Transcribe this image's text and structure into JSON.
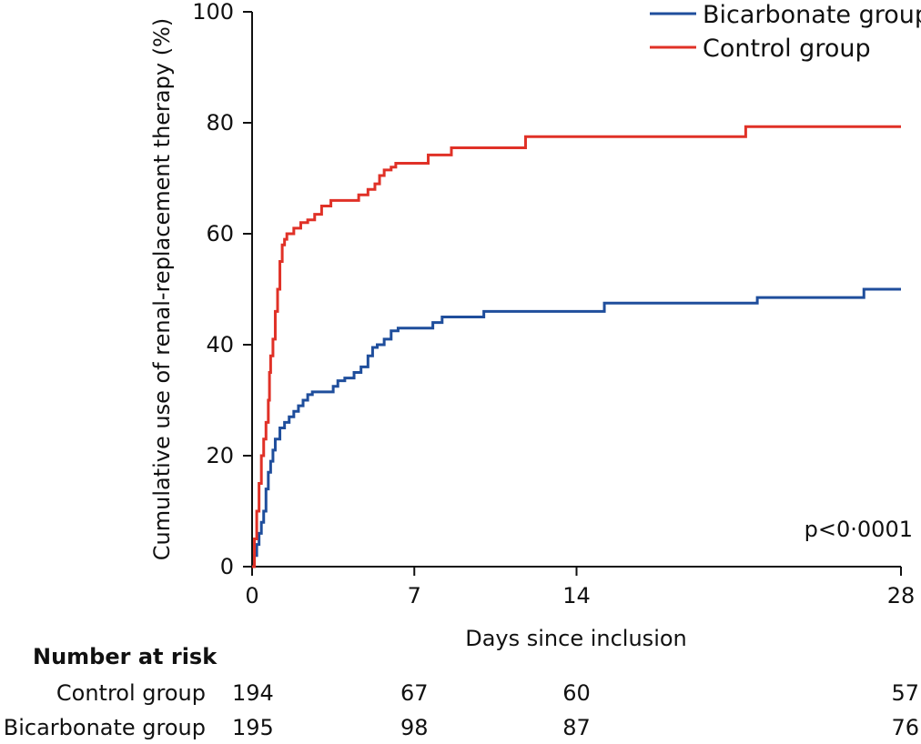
{
  "chart_data": {
    "type": "line",
    "step": true,
    "xlabel": "Days since inclusion",
    "ylabel": "Cumulative use of renal-replacement therapy (%)",
    "xlim": [
      0,
      28
    ],
    "ylim": [
      0,
      100
    ],
    "xticks": [
      0,
      7,
      14,
      28
    ],
    "yticks": [
      0,
      20,
      40,
      60,
      80,
      100
    ],
    "legend_position": "top-right",
    "annotation": "p<0·0001",
    "series": [
      {
        "name": "Bicarbonate group",
        "color": "#1f4e9c",
        "points": [
          [
            0,
            0
          ],
          [
            0.1,
            2
          ],
          [
            0.2,
            4
          ],
          [
            0.3,
            6
          ],
          [
            0.4,
            8
          ],
          [
            0.5,
            10
          ],
          [
            0.6,
            14
          ],
          [
            0.7,
            17
          ],
          [
            0.8,
            19
          ],
          [
            0.9,
            21
          ],
          [
            1.0,
            23
          ],
          [
            1.2,
            25
          ],
          [
            1.4,
            26
          ],
          [
            1.6,
            27
          ],
          [
            1.8,
            28
          ],
          [
            2.0,
            29
          ],
          [
            2.2,
            30
          ],
          [
            2.4,
            31
          ],
          [
            2.6,
            31.5
          ],
          [
            3.5,
            32.5
          ],
          [
            3.7,
            33.5
          ],
          [
            4.0,
            34
          ],
          [
            4.4,
            35
          ],
          [
            4.7,
            36
          ],
          [
            5.0,
            38
          ],
          [
            5.2,
            39.5
          ],
          [
            5.4,
            40
          ],
          [
            5.7,
            41
          ],
          [
            6.0,
            42.5
          ],
          [
            6.3,
            43
          ],
          [
            7.8,
            44
          ],
          [
            8.2,
            45
          ],
          [
            10.0,
            46
          ],
          [
            15.2,
            47.5
          ],
          [
            21.8,
            48.5
          ],
          [
            26.4,
            50
          ],
          [
            28,
            50
          ]
        ]
      },
      {
        "name": "Control group",
        "color": "#e03127",
        "points": [
          [
            0,
            0
          ],
          [
            0.1,
            5
          ],
          [
            0.2,
            10
          ],
          [
            0.3,
            15
          ],
          [
            0.4,
            20
          ],
          [
            0.5,
            23
          ],
          [
            0.6,
            26
          ],
          [
            0.7,
            30
          ],
          [
            0.75,
            35
          ],
          [
            0.8,
            38
          ],
          [
            0.9,
            41
          ],
          [
            1.0,
            46
          ],
          [
            1.1,
            50
          ],
          [
            1.2,
            55
          ],
          [
            1.3,
            58
          ],
          [
            1.4,
            59
          ],
          [
            1.5,
            60
          ],
          [
            1.8,
            61
          ],
          [
            2.1,
            62
          ],
          [
            2.4,
            62.5
          ],
          [
            2.7,
            63.5
          ],
          [
            3.0,
            65
          ],
          [
            3.4,
            66
          ],
          [
            4.6,
            67
          ],
          [
            5.0,
            68
          ],
          [
            5.3,
            69
          ],
          [
            5.5,
            70.5
          ],
          [
            5.7,
            71.5
          ],
          [
            6.0,
            72
          ],
          [
            6.2,
            72.7
          ],
          [
            7.6,
            74.2
          ],
          [
            8.6,
            75.5
          ],
          [
            11.8,
            77.5
          ],
          [
            21.3,
            79.3
          ],
          [
            28,
            79.3
          ]
        ]
      }
    ],
    "number_at_risk": {
      "title": "Number at risk",
      "days": [
        0,
        7,
        14,
        28
      ],
      "rows": [
        {
          "label": "Control group",
          "values": [
            "194",
            "67",
            "60",
            "57"
          ]
        },
        {
          "label": "Bicarbonate group",
          "values": [
            "195",
            "98",
            "87",
            "76"
          ]
        }
      ]
    }
  }
}
